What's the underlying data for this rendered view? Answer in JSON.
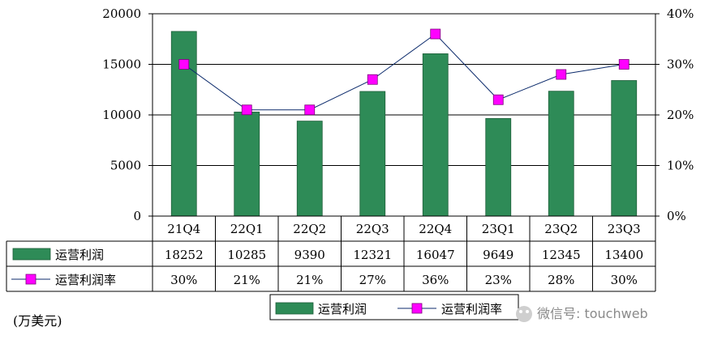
{
  "chart_data": {
    "type": "bar",
    "categories": [
      "21Q4",
      "22Q1",
      "22Q2",
      "22Q3",
      "22Q4",
      "23Q1",
      "23Q2",
      "23Q3"
    ],
    "series": [
      {
        "name": "运营利润",
        "type": "bar",
        "axis": "left",
        "color": "#2e8b57",
        "values": [
          18252,
          10285,
          9390,
          12321,
          16047,
          9649,
          12345,
          13400
        ]
      },
      {
        "name": "运营利润率",
        "type": "line",
        "axis": "right",
        "color": "#ff00ff",
        "line_color": "#0b2a6b",
        "values": [
          0.3,
          0.21,
          0.21,
          0.27,
          0.36,
          0.23,
          0.28,
          0.3
        ],
        "labels": [
          "30%",
          "21%",
          "21%",
          "27%",
          "36%",
          "23%",
          "28%",
          "30%"
        ]
      }
    ],
    "y_left": {
      "ylim": [
        0,
        20000
      ],
      "ticks": [
        "0",
        "5000",
        "10000",
        "15000",
        "20000"
      ]
    },
    "y_right": {
      "ylim": [
        0,
        0.4
      ],
      "ticks": [
        "0%",
        "10%",
        "20%",
        "30%",
        "40%"
      ]
    },
    "table_values": [
      "18252",
      "10285",
      "9390",
      "12321",
      "16047",
      "9649",
      "12345",
      "13400"
    ],
    "unit_note": "(万美元)",
    "legend": {
      "position": "bottom",
      "items": [
        "运营利润",
        "运营利润率"
      ]
    },
    "grid": true
  },
  "watermark": "微信号: touchweb"
}
